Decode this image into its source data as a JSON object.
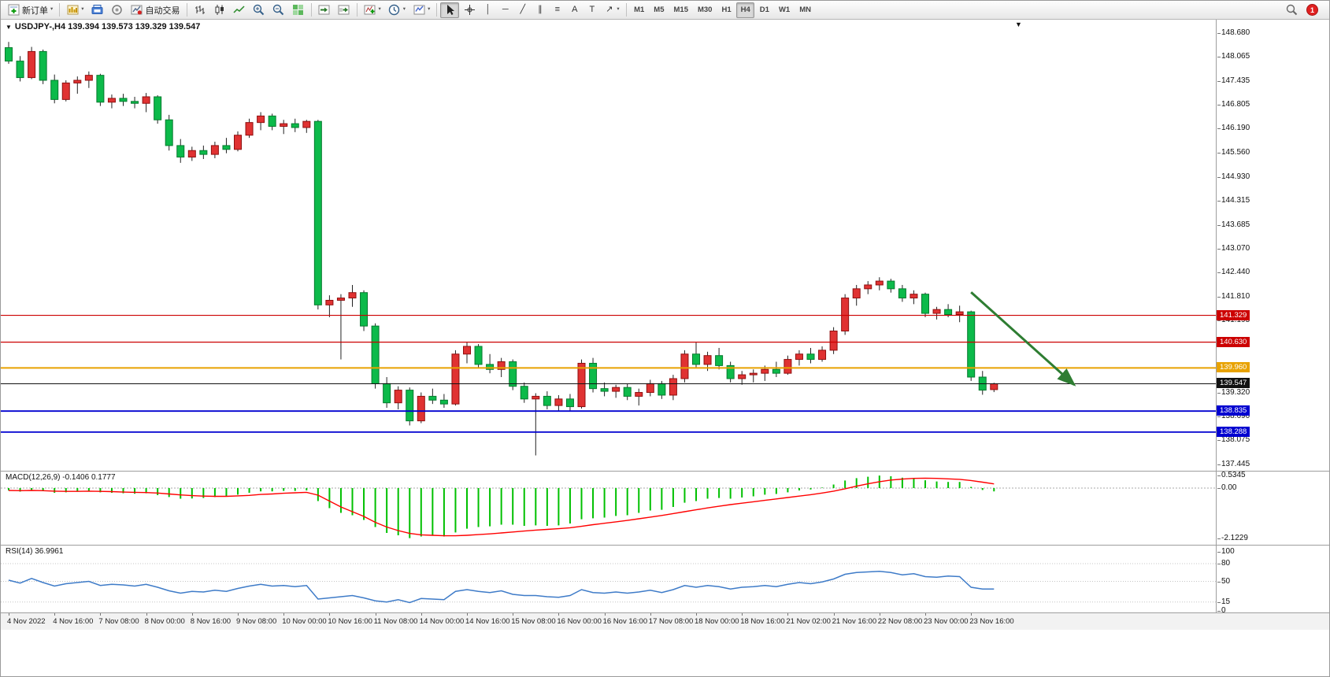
{
  "toolbar": {
    "new_order_label": "新订单",
    "autotrading_label": "自动交易",
    "timeframes": [
      "M1",
      "M5",
      "M15",
      "M30",
      "H1",
      "H4",
      "D1",
      "W1",
      "MN"
    ],
    "active_timeframe": "H4",
    "notification_count": "1"
  },
  "icons": {
    "caret": "▾",
    "symbol_dropdown": "▼",
    "shift_marker": "▼",
    "vline_tool": "│",
    "hline_tool": "─",
    "trend_tool": "╱",
    "channel_tool": "∥",
    "fibo_tool": "≡",
    "text_tool": "A",
    "label_tool": "T",
    "arrow_tool": "↗"
  },
  "chart": {
    "title": "USDJPY-,H4 139.394 139.573 139.329 139.547",
    "symbol": "USDJPY-",
    "period": "H4",
    "ohlc": {
      "open": "139.394",
      "high": "139.573",
      "low": "139.329",
      "close": "139.547"
    }
  },
  "colors": {
    "bull": "#E03232",
    "bull_border": "#8F0F0F",
    "bear": "#0CBA4A",
    "bear_border": "#067A2E",
    "wick": "#222222",
    "macd_hist": "#00C000",
    "macd_signal": "#FF0000",
    "rsi": "#3E7BC8",
    "arrow": "#2E7D32",
    "current_price": "#111111"
  },
  "chart_data": {
    "type": "candlestick",
    "title": "USDJPY- H4",
    "symbol": "USDJPY-",
    "timeframe": "H4",
    "price_axis": [
      "148.680",
      "148.065",
      "147.435",
      "146.805",
      "146.190",
      "145.560",
      "144.930",
      "144.315",
      "143.685",
      "143.070",
      "142.440",
      "141.810",
      "141.195",
      "140.565",
      "139.935",
      "139.320",
      "138.690",
      "138.075",
      "137.445"
    ],
    "time_axis": [
      "4 Nov 2022",
      "4 Nov 16:00",
      "7 Nov 08:00",
      "8 Nov 00:00",
      "8 Nov 16:00",
      "9 Nov 08:00",
      "10 Nov 00:00",
      "10 Nov 16:00",
      "11 Nov 08:00",
      "14 Nov 00:00",
      "14 Nov 16:00",
      "15 Nov 08:00",
      "16 Nov 00:00",
      "16 Nov 16:00",
      "17 Nov 08:00",
      "18 Nov 00:00",
      "18 Nov 16:00",
      "21 Nov 02:00",
      "21 Nov 16:00",
      "22 Nov 08:00",
      "23 Nov 00:00",
      "23 Nov 16:00"
    ],
    "candles": [
      [
        148.3,
        148.45,
        147.88,
        147.95
      ],
      [
        147.95,
        148.08,
        147.42,
        147.52
      ],
      [
        147.52,
        148.32,
        147.48,
        148.2
      ],
      [
        148.2,
        148.25,
        147.35,
        147.45
      ],
      [
        147.45,
        147.6,
        146.85,
        146.95
      ],
      [
        146.95,
        147.45,
        146.9,
        147.38
      ],
      [
        147.38,
        147.55,
        147.1,
        147.45
      ],
      [
        147.45,
        147.68,
        147.25,
        147.58
      ],
      [
        147.58,
        147.62,
        146.78,
        146.88
      ],
      [
        146.88,
        147.08,
        146.72,
        146.98
      ],
      [
        146.98,
        147.1,
        146.78,
        146.9
      ],
      [
        146.9,
        147.02,
        146.72,
        146.85
      ],
      [
        146.85,
        147.12,
        146.62,
        147.02
      ],
      [
        147.02,
        147.06,
        146.32,
        146.42
      ],
      [
        146.42,
        146.55,
        145.62,
        145.75
      ],
      [
        145.75,
        145.92,
        145.3,
        145.45
      ],
      [
        145.45,
        145.72,
        145.35,
        145.62
      ],
      [
        145.62,
        145.75,
        145.4,
        145.52
      ],
      [
        145.52,
        145.85,
        145.42,
        145.75
      ],
      [
        145.75,
        145.95,
        145.55,
        145.65
      ],
      [
        145.65,
        146.12,
        145.6,
        146.02
      ],
      [
        146.02,
        146.45,
        145.95,
        146.35
      ],
      [
        146.35,
        146.62,
        146.15,
        146.52
      ],
      [
        146.52,
        146.58,
        146.15,
        146.25
      ],
      [
        146.25,
        146.42,
        146.05,
        146.32
      ],
      [
        146.32,
        146.45,
        146.1,
        146.22
      ],
      [
        146.22,
        146.42,
        146.08,
        146.38
      ],
      [
        146.38,
        146.42,
        141.48,
        141.6
      ],
      [
        141.6,
        141.85,
        141.28,
        141.72
      ],
      [
        141.72,
        141.88,
        140.18,
        141.78
      ],
      [
        141.78,
        142.12,
        141.55,
        141.92
      ],
      [
        141.92,
        141.98,
        140.92,
        141.05
      ],
      [
        141.05,
        141.12,
        139.42,
        139.55
      ],
      [
        139.55,
        139.72,
        138.92,
        139.05
      ],
      [
        139.05,
        139.48,
        138.88,
        139.38
      ],
      [
        139.38,
        139.45,
        138.46,
        138.58
      ],
      [
        138.58,
        139.32,
        138.52,
        139.22
      ],
      [
        139.22,
        139.42,
        139.02,
        139.12
      ],
      [
        139.12,
        139.28,
        138.92,
        139.02
      ],
      [
        139.02,
        140.42,
        138.98,
        140.32
      ],
      [
        140.32,
        140.62,
        140.08,
        140.52
      ],
      [
        140.52,
        140.58,
        139.95,
        140.05
      ],
      [
        140.05,
        140.32,
        139.82,
        139.92
      ],
      [
        139.92,
        140.22,
        139.72,
        140.12
      ],
      [
        140.12,
        140.18,
        139.38,
        139.48
      ],
      [
        139.48,
        139.58,
        139.05,
        139.15
      ],
      [
        139.15,
        139.3,
        137.68,
        139.22
      ],
      [
        139.22,
        139.35,
        138.88,
        138.98
      ],
      [
        138.98,
        139.25,
        138.82,
        139.15
      ],
      [
        139.15,
        139.28,
        138.85,
        138.95
      ],
      [
        138.95,
        140.18,
        138.9,
        140.08
      ],
      [
        140.08,
        140.22,
        139.32,
        139.42
      ],
      [
        139.42,
        139.58,
        139.22,
        139.35
      ],
      [
        139.35,
        139.52,
        139.18,
        139.45
      ],
      [
        139.45,
        139.55,
        139.12,
        139.22
      ],
      [
        139.22,
        139.42,
        138.98,
        139.32
      ],
      [
        139.32,
        139.65,
        139.22,
        139.55
      ],
      [
        139.55,
        139.62,
        139.15,
        139.25
      ],
      [
        139.25,
        139.78,
        139.12,
        139.68
      ],
      [
        139.68,
        140.42,
        139.58,
        140.32
      ],
      [
        140.32,
        140.62,
        139.95,
        140.05
      ],
      [
        140.05,
        140.38,
        139.88,
        140.28
      ],
      [
        140.28,
        140.48,
        139.92,
        140.02
      ],
      [
        140.02,
        140.12,
        139.58,
        139.68
      ],
      [
        139.68,
        139.88,
        139.52,
        139.78
      ],
      [
        139.78,
        139.92,
        139.58,
        139.82
      ],
      [
        139.82,
        140.02,
        139.62,
        139.92
      ],
      [
        139.92,
        140.12,
        139.72,
        139.82
      ],
      [
        139.82,
        140.28,
        139.78,
        140.18
      ],
      [
        140.18,
        140.42,
        140.02,
        140.32
      ],
      [
        140.32,
        140.48,
        140.08,
        140.18
      ],
      [
        140.18,
        140.52,
        140.12,
        140.42
      ],
      [
        140.42,
        141.02,
        140.32,
        140.92
      ],
      [
        140.92,
        141.88,
        140.82,
        141.78
      ],
      [
        141.78,
        142.12,
        141.58,
        142.02
      ],
      [
        142.02,
        142.22,
        141.88,
        142.12
      ],
      [
        142.12,
        142.32,
        141.98,
        142.22
      ],
      [
        142.22,
        142.28,
        141.92,
        142.02
      ],
      [
        142.02,
        142.12,
        141.68,
        141.78
      ],
      [
        141.78,
        141.98,
        141.62,
        141.88
      ],
      [
        141.88,
        141.92,
        141.28,
        141.38
      ],
      [
        141.38,
        141.55,
        141.22,
        141.48
      ],
      [
        141.48,
        141.62,
        141.28,
        141.35
      ],
      [
        141.35,
        141.58,
        141.15,
        141.42
      ],
      [
        141.42,
        141.45,
        139.62,
        139.72
      ],
      [
        139.72,
        139.88,
        139.26,
        139.38
      ],
      [
        139.394,
        139.573,
        139.329,
        139.547
      ]
    ],
    "hlines": [
      {
        "price": 141.329,
        "label": "141.329",
        "color": "#CC0000",
        "width": 1.2
      },
      {
        "price": 140.63,
        "label": "140.630",
        "color": "#CC0000",
        "width": 1.2
      },
      {
        "price": 139.96,
        "label": "139.960",
        "color": "#E8A200",
        "width": 2
      },
      {
        "price": 138.835,
        "label": "138.835",
        "color": "#0000D0",
        "width": 1.8
      },
      {
        "price": 138.288,
        "label": "138.288",
        "color": "#0000D0",
        "width": 1.8
      }
    ],
    "current_price": {
      "value": 139.547,
      "label": "139.547"
    },
    "trend_arrow": {
      "from_bar": 84,
      "from_price": 141.93,
      "to_bar": 93,
      "to_price": 139.52
    },
    "indicators": {
      "macd": {
        "label": "MACD(12,26,9) -0.1406 0.1777",
        "name": "MACD(12,26,9)",
        "value": "-0.1406",
        "signal_value": "0.1777",
        "scale": [
          "0.5345",
          "0.00",
          "-2.1229"
        ],
        "histogram": [
          -0.1,
          -0.15,
          -0.08,
          -0.12,
          -0.2,
          -0.18,
          -0.14,
          -0.12,
          -0.18,
          -0.2,
          -0.22,
          -0.24,
          -0.22,
          -0.3,
          -0.38,
          -0.45,
          -0.44,
          -0.42,
          -0.38,
          -0.36,
          -0.28,
          -0.2,
          -0.14,
          -0.14,
          -0.12,
          -0.12,
          -0.1,
          -0.55,
          -0.85,
          -1.05,
          -1.15,
          -1.35,
          -1.65,
          -1.9,
          -2.0,
          -2.12,
          -2.05,
          -2.02,
          -2.05,
          -1.88,
          -1.72,
          -1.65,
          -1.62,
          -1.55,
          -1.55,
          -1.6,
          -1.58,
          -1.6,
          -1.58,
          -1.5,
          -1.32,
          -1.28,
          -1.25,
          -1.18,
          -1.15,
          -1.05,
          -0.95,
          -0.92,
          -0.8,
          -0.62,
          -0.55,
          -0.45,
          -0.42,
          -0.45,
          -0.4,
          -0.35,
          -0.28,
          -0.25,
          -0.18,
          -0.1,
          -0.06,
          0.02,
          0.15,
          0.32,
          0.42,
          0.48,
          0.53,
          0.5,
          0.44,
          0.4,
          0.33,
          0.28,
          0.26,
          0.26,
          0.05,
          -0.08,
          -0.14
        ],
        "signal_line": [
          -0.1,
          -0.11,
          -0.1,
          -0.11,
          -0.13,
          -0.14,
          -0.14,
          -0.13,
          -0.14,
          -0.15,
          -0.17,
          -0.18,
          -0.19,
          -0.21,
          -0.25,
          -0.29,
          -0.32,
          -0.34,
          -0.35,
          -0.35,
          -0.33,
          -0.31,
          -0.27,
          -0.25,
          -0.22,
          -0.2,
          -0.18,
          -0.3,
          -0.55,
          -0.8,
          -1.0,
          -1.2,
          -1.45,
          -1.65,
          -1.8,
          -1.92,
          -1.98,
          -2.0,
          -2.02,
          -2.02,
          -2.0,
          -1.97,
          -1.94,
          -1.9,
          -1.86,
          -1.82,
          -1.78,
          -1.75,
          -1.72,
          -1.68,
          -1.62,
          -1.55,
          -1.49,
          -1.43,
          -1.37,
          -1.3,
          -1.23,
          -1.16,
          -1.08,
          -1.0,
          -0.92,
          -0.84,
          -0.77,
          -0.7,
          -0.64,
          -0.58,
          -0.52,
          -0.46,
          -0.4,
          -0.34,
          -0.28,
          -0.21,
          -0.13,
          -0.03,
          0.08,
          0.18,
          0.27,
          0.34,
          0.38,
          0.41,
          0.42,
          0.41,
          0.39,
          0.37,
          0.32,
          0.25,
          0.1777
        ]
      },
      "rsi": {
        "label": "RSI(14) 36.9961",
        "name": "RSI(14)",
        "value": "36.9961",
        "scale": [
          "100",
          "80",
          "50",
          "15",
          "0"
        ],
        "levels": [
          80,
          50,
          15
        ],
        "values": [
          52,
          47,
          55,
          48,
          42,
          46,
          48,
          50,
          43,
          45,
          44,
          42,
          45,
          40,
          34,
          30,
          33,
          32,
          35,
          33,
          38,
          42,
          45,
          42,
          43,
          41,
          43,
          20,
          22,
          24,
          26,
          22,
          17,
          15,
          19,
          14,
          21,
          20,
          19,
          33,
          36,
          33,
          31,
          34,
          28,
          26,
          26,
          24,
          23,
          26,
          36,
          31,
          30,
          32,
          30,
          32,
          35,
          31,
          36,
          43,
          40,
          43,
          41,
          37,
          40,
          41,
          43,
          41,
          45,
          48,
          46,
          49,
          54,
          62,
          65,
          66,
          67,
          65,
          61,
          63,
          58,
          57,
          59,
          58,
          40,
          37,
          37
        ]
      }
    }
  }
}
